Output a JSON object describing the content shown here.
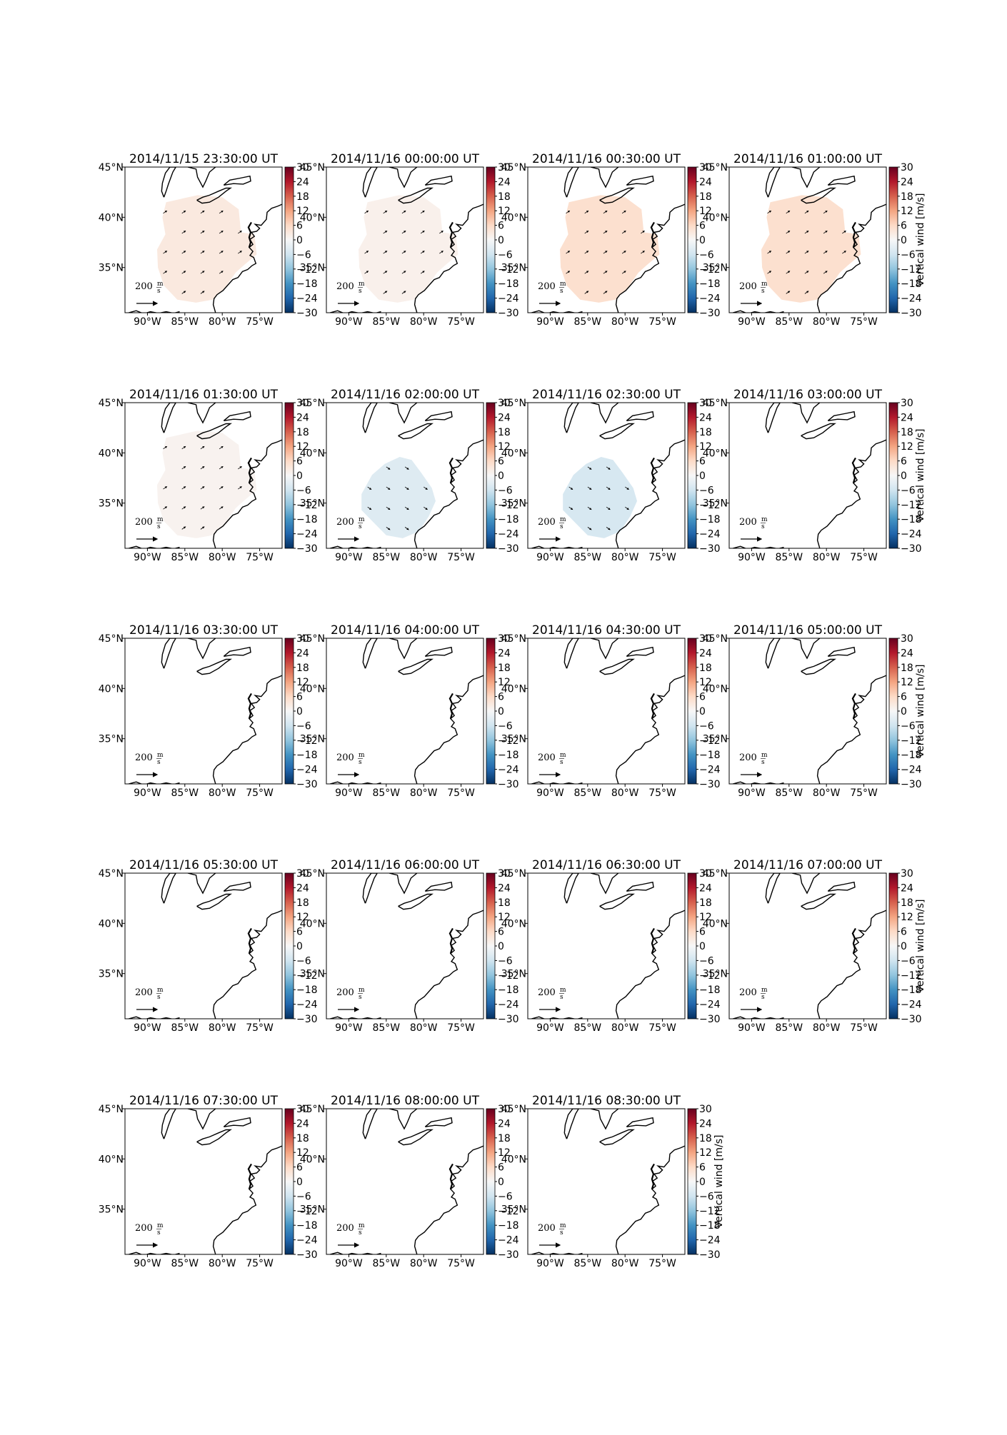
{
  "chart_data": {
    "type": "heatmap",
    "quantity_label": "Vertical wind [m/s]",
    "colorbar": {
      "ticks": [
        30,
        24,
        18,
        12,
        6,
        0,
        -6,
        -12,
        -18,
        -24,
        -30
      ],
      "range": [
        -30,
        30
      ],
      "colormap": "RdBu_r"
    },
    "axes": {
      "x_ticks": [
        "90°W",
        "85°W",
        "80°W",
        "75°W"
      ],
      "x_values": [
        -90,
        -85,
        -80,
        -75
      ],
      "y_ticks": [
        "45°N",
        "40°N",
        "35°N"
      ],
      "y_values": [
        45,
        40,
        35
      ],
      "lon_range": [
        -93,
        -72
      ],
      "lat_range": [
        30.5,
        45
      ]
    },
    "quiver_key": {
      "value": "200",
      "unit_num": "m",
      "unit_den": "s"
    },
    "panels": [
      {
        "title": "2014/11/15 23:30:00 UT",
        "vertical_wind": 3,
        "region": "north",
        "colorbar_label": false
      },
      {
        "title": "2014/11/16 00:00:00 UT",
        "vertical_wind": 1.5,
        "region": "north",
        "colorbar_label": false
      },
      {
        "title": "2014/11/16 00:30:00 UT",
        "vertical_wind": 5,
        "region": "north",
        "colorbar_label": false
      },
      {
        "title": "2014/11/16 01:00:00 UT",
        "vertical_wind": 5,
        "region": "north",
        "colorbar_label": true
      },
      {
        "title": "2014/11/16 01:30:00 UT",
        "vertical_wind": 1,
        "region": "north",
        "colorbar_label": false
      },
      {
        "title": "2014/11/16 02:00:00 UT",
        "vertical_wind": -4,
        "region": "south",
        "colorbar_label": false
      },
      {
        "title": "2014/11/16 02:30:00 UT",
        "vertical_wind": -5,
        "region": "south",
        "colorbar_label": false
      },
      {
        "title": "2014/11/16 03:00:00 UT",
        "vertical_wind": null,
        "region": "",
        "colorbar_label": true
      },
      {
        "title": "2014/11/16 03:30:00 UT",
        "vertical_wind": null,
        "region": "",
        "colorbar_label": false
      },
      {
        "title": "2014/11/16 04:00:00 UT",
        "vertical_wind": null,
        "region": "",
        "colorbar_label": false
      },
      {
        "title": "2014/11/16 04:30:00 UT",
        "vertical_wind": null,
        "region": "",
        "colorbar_label": false
      },
      {
        "title": "2014/11/16 05:00:00 UT",
        "vertical_wind": null,
        "region": "",
        "colorbar_label": true
      },
      {
        "title": "2014/11/16 05:30:00 UT",
        "vertical_wind": null,
        "region": "",
        "colorbar_label": false
      },
      {
        "title": "2014/11/16 06:00:00 UT",
        "vertical_wind": null,
        "region": "",
        "colorbar_label": false
      },
      {
        "title": "2014/11/16 06:30:00 UT",
        "vertical_wind": null,
        "region": "",
        "colorbar_label": false
      },
      {
        "title": "2014/11/16 07:00:00 UT",
        "vertical_wind": null,
        "region": "",
        "colorbar_label": true
      },
      {
        "title": "2014/11/16 07:30:00 UT",
        "vertical_wind": null,
        "region": "",
        "colorbar_label": false
      },
      {
        "title": "2014/11/16 08:00:00 UT",
        "vertical_wind": null,
        "region": "",
        "colorbar_label": false
      },
      {
        "title": "2014/11/16 08:30:00 UT",
        "vertical_wind": null,
        "region": "",
        "colorbar_label": true
      }
    ]
  }
}
